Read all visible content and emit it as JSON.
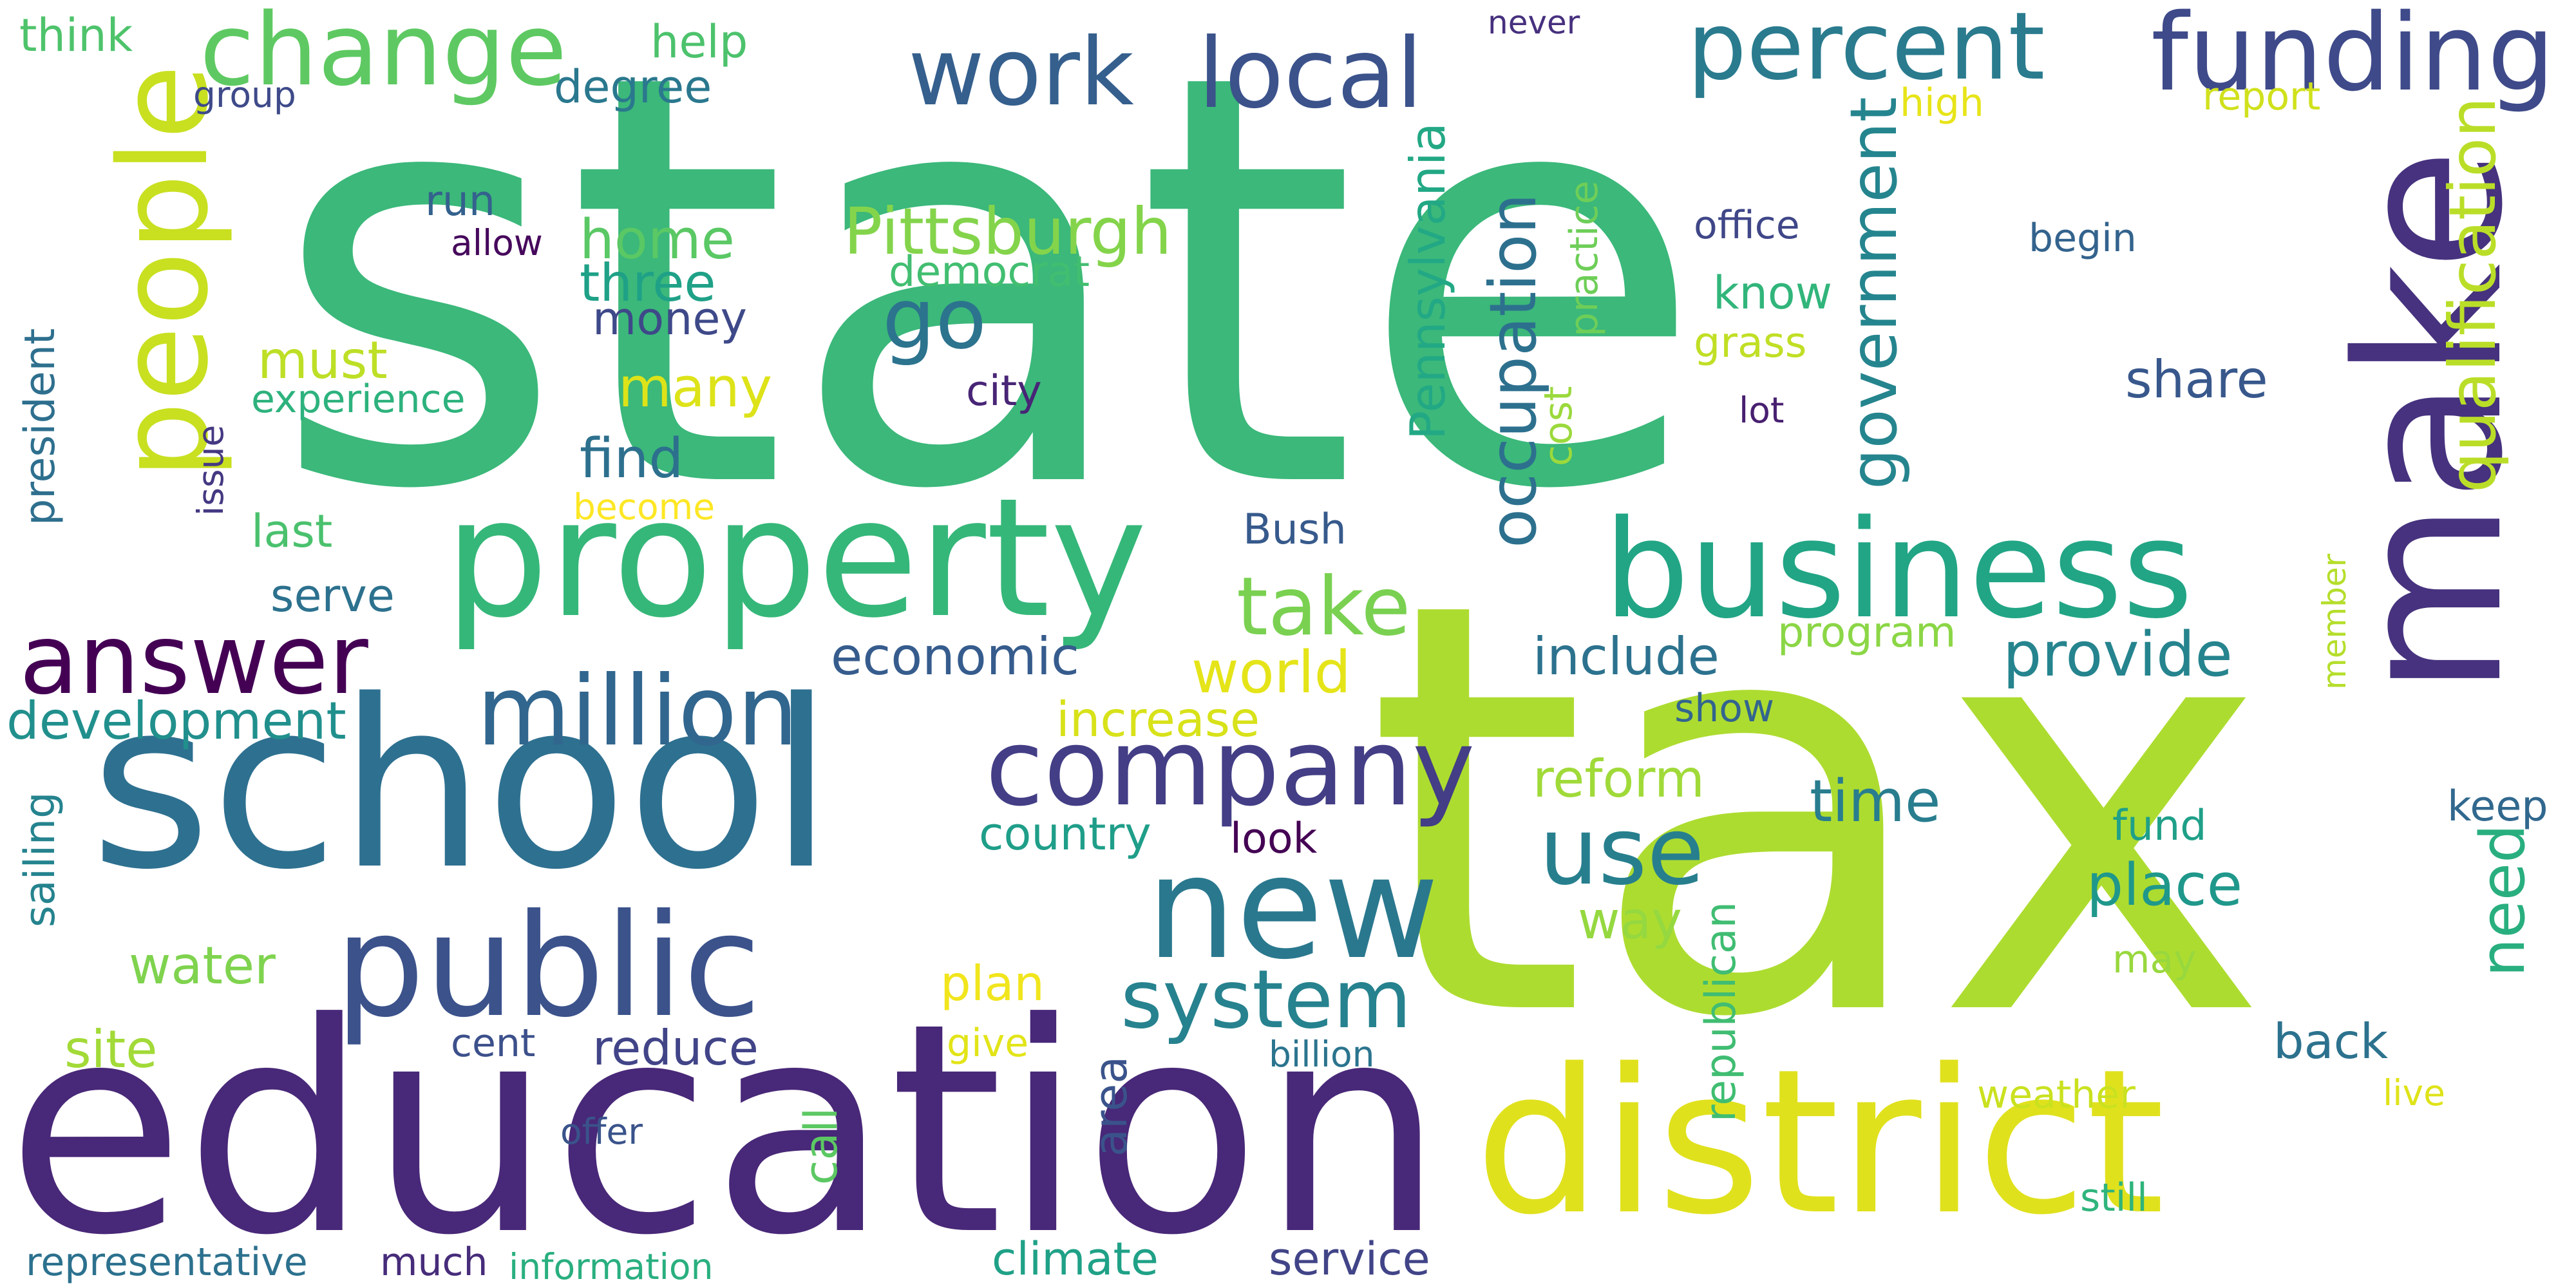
{
  "words": [
    {
      "text": "state",
      "color": "#3bb87a",
      "vertical": false
    },
    {
      "text": "tax",
      "color": "#addc30",
      "vertical": false
    },
    {
      "text": "education",
      "color": "#482878",
      "vertical": false
    },
    {
      "text": "school",
      "color": "#2e7090",
      "vertical": false
    },
    {
      "text": "district",
      "color": "#e0e11d",
      "vertical": false
    },
    {
      "text": "property",
      "color": "#35b779",
      "vertical": false
    },
    {
      "text": "make",
      "color": "#46327e",
      "vertical": true
    },
    {
      "text": "business",
      "color": "#21a585",
      "vertical": false
    },
    {
      "text": "public",
      "color": "#3b528b",
      "vertical": false
    },
    {
      "text": "new",
      "color": "#2a788e",
      "vertical": false
    },
    {
      "text": "people",
      "color": "#c8e020",
      "vertical": true
    },
    {
      "text": "funding",
      "color": "#3e4a89",
      "vertical": false
    },
    {
      "text": "company",
      "color": "#433e85",
      "vertical": false
    },
    {
      "text": "million",
      "color": "#31668e",
      "vertical": false
    },
    {
      "text": "answer",
      "color": "#440154",
      "vertical": false
    },
    {
      "text": "change",
      "color": "#5ec962",
      "vertical": false
    },
    {
      "text": "percent",
      "color": "#2a7b8e",
      "vertical": false
    },
    {
      "text": "system",
      "color": "#26828e",
      "vertical": false
    },
    {
      "text": "local",
      "color": "#3b528b",
      "vertical": false
    },
    {
      "text": "work",
      "color": "#355f8d",
      "vertical": false
    },
    {
      "text": "use",
      "color": "#277f8e",
      "vertical": false
    },
    {
      "text": "take",
      "color": "#7ad151",
      "vertical": false
    },
    {
      "text": "go",
      "color": "#2c738e",
      "vertical": false
    },
    {
      "text": "Pittsburgh",
      "color": "#84d44b",
      "vertical": false
    },
    {
      "text": "qualification",
      "color": "#bade28",
      "vertical": true
    },
    {
      "text": "government",
      "color": "#25858e",
      "vertical": true
    },
    {
      "text": "occupation",
      "color": "#2d708e",
      "vertical": true
    },
    {
      "text": "Pennsylvania",
      "color": "#22a884",
      "vertical": true
    },
    {
      "text": "development",
      "color": "#21908d",
      "vertical": false
    },
    {
      "text": "world",
      "color": "#e5e419",
      "vertical": false
    },
    {
      "text": "provide",
      "color": "#25848e",
      "vertical": false
    },
    {
      "text": "economic",
      "color": "#365c8d",
      "vertical": false
    },
    {
      "text": "include",
      "color": "#2c728e",
      "vertical": false
    },
    {
      "text": "time",
      "color": "#287d8e",
      "vertical": false
    },
    {
      "text": "place",
      "color": "#1f988b",
      "vertical": false
    },
    {
      "text": "reform",
      "color": "#a0da39",
      "vertical": false
    },
    {
      "text": "increase",
      "color": "#d8e219",
      "vertical": false
    },
    {
      "text": "many",
      "color": "#dde318",
      "vertical": false
    },
    {
      "text": "find",
      "color": "#2d708e",
      "vertical": false
    },
    {
      "text": "home",
      "color": "#5ac864",
      "vertical": false
    },
    {
      "text": "three",
      "color": "#1fa187",
      "vertical": false
    },
    {
      "text": "money",
      "color": "#3e4989",
      "vertical": false
    },
    {
      "text": "must",
      "color": "#bddf26",
      "vertical": false
    },
    {
      "text": "water",
      "color": "#7fd34e",
      "vertical": false
    },
    {
      "text": "site",
      "color": "#a2da37",
      "vertical": false
    },
    {
      "text": "reduce",
      "color": "#414487",
      "vertical": false
    },
    {
      "text": "country",
      "color": "#1f9e89",
      "vertical": false
    },
    {
      "text": "way",
      "color": "#95d840",
      "vertical": false
    },
    {
      "text": "share",
      "color": "#38588c",
      "vertical": false
    },
    {
      "text": "need",
      "color": "#29af7f",
      "vertical": true
    },
    {
      "text": "back",
      "color": "#2c728e",
      "vertical": false
    },
    {
      "text": "keep",
      "color": "#31688e",
      "vertical": false
    },
    {
      "text": "fund",
      "color": "#1fa088",
      "vertical": false
    },
    {
      "text": "republican",
      "color": "#40bd72",
      "vertical": true
    },
    {
      "text": "call",
      "color": "#5cc863",
      "vertical": true
    },
    {
      "text": "area",
      "color": "#3a538b",
      "vertical": true
    },
    {
      "text": "plan",
      "color": "#f1e51d",
      "vertical": false
    },
    {
      "text": "sailing",
      "color": "#25838e",
      "vertical": true
    },
    {
      "text": "president",
      "color": "#2e6f8e",
      "vertical": true
    },
    {
      "text": "last",
      "color": "#4ac16d",
      "vertical": false
    },
    {
      "text": "serve",
      "color": "#2c718e",
      "vertical": false
    },
    {
      "text": "experience",
      "color": "#2db27d",
      "vertical": false
    },
    {
      "text": "become",
      "color": "#fde725",
      "vertical": false
    },
    {
      "text": "issue",
      "color": "#453882",
      "vertical": true
    },
    {
      "text": "city",
      "color": "#482576",
      "vertical": false
    },
    {
      "text": "democrat",
      "color": "#42be71",
      "vertical": false
    },
    {
      "text": "run",
      "color": "#34618d",
      "vertical": false
    },
    {
      "text": "allow",
      "color": "#46085c",
      "vertical": false
    },
    {
      "text": "degree",
      "color": "#2a788e",
      "vertical": false
    },
    {
      "text": "help",
      "color": "#4cc26c",
      "vertical": false
    },
    {
      "text": "think",
      "color": "#4ec36b",
      "vertical": false
    },
    {
      "text": "group",
      "color": "#3e4a89",
      "vertical": false
    },
    {
      "text": "never",
      "color": "#46307e",
      "vertical": false
    },
    {
      "text": "high",
      "color": "#e7e419",
      "vertical": false
    },
    {
      "text": "report",
      "color": "#d0e11c",
      "vertical": false
    },
    {
      "text": "office",
      "color": "#3f4788",
      "vertical": false
    },
    {
      "text": "begin",
      "color": "#33638d",
      "vertical": false
    },
    {
      "text": "know",
      "color": "#31b57b",
      "vertical": false
    },
    {
      "text": "grass",
      "color": "#c0df25",
      "vertical": false
    },
    {
      "text": "lot",
      "color": "#481f70",
      "vertical": false
    },
    {
      "text": "practice",
      "color": "#6ece58",
      "vertical": true
    },
    {
      "text": "cost",
      "color": "#9bd93c",
      "vertical": true
    },
    {
      "text": "program",
      "color": "#8bd646",
      "vertical": false
    },
    {
      "text": "member",
      "color": "#b5de2b",
      "vertical": true
    },
    {
      "text": "show",
      "color": "#32658e",
      "vertical": false
    },
    {
      "text": "Bush",
      "color": "#375a8c",
      "vertical": false
    },
    {
      "text": "look",
      "color": "#440154",
      "vertical": false
    },
    {
      "text": "cent",
      "color": "#3c508b",
      "vertical": false
    },
    {
      "text": "give",
      "color": "#e2e418",
      "vertical": false
    },
    {
      "text": "billion",
      "color": "#2b748e",
      "vertical": false
    },
    {
      "text": "may",
      "color": "#98d83e",
      "vertical": false
    },
    {
      "text": "weather",
      "color": "#cae11f",
      "vertical": false
    },
    {
      "text": "live",
      "color": "#dfe318",
      "vertical": false
    },
    {
      "text": "still",
      "color": "#2fb47c",
      "vertical": false
    },
    {
      "text": "offer",
      "color": "#3a538b",
      "vertical": false
    },
    {
      "text": "representative",
      "color": "#2c718e",
      "vertical": false
    },
    {
      "text": "much",
      "color": "#472c7a",
      "vertical": false
    },
    {
      "text": "information",
      "color": "#29af7f",
      "vertical": false
    },
    {
      "text": "climate",
      "color": "#1fa187",
      "vertical": false
    },
    {
      "text": "service",
      "color": "#414487",
      "vertical": false
    }
  ]
}
